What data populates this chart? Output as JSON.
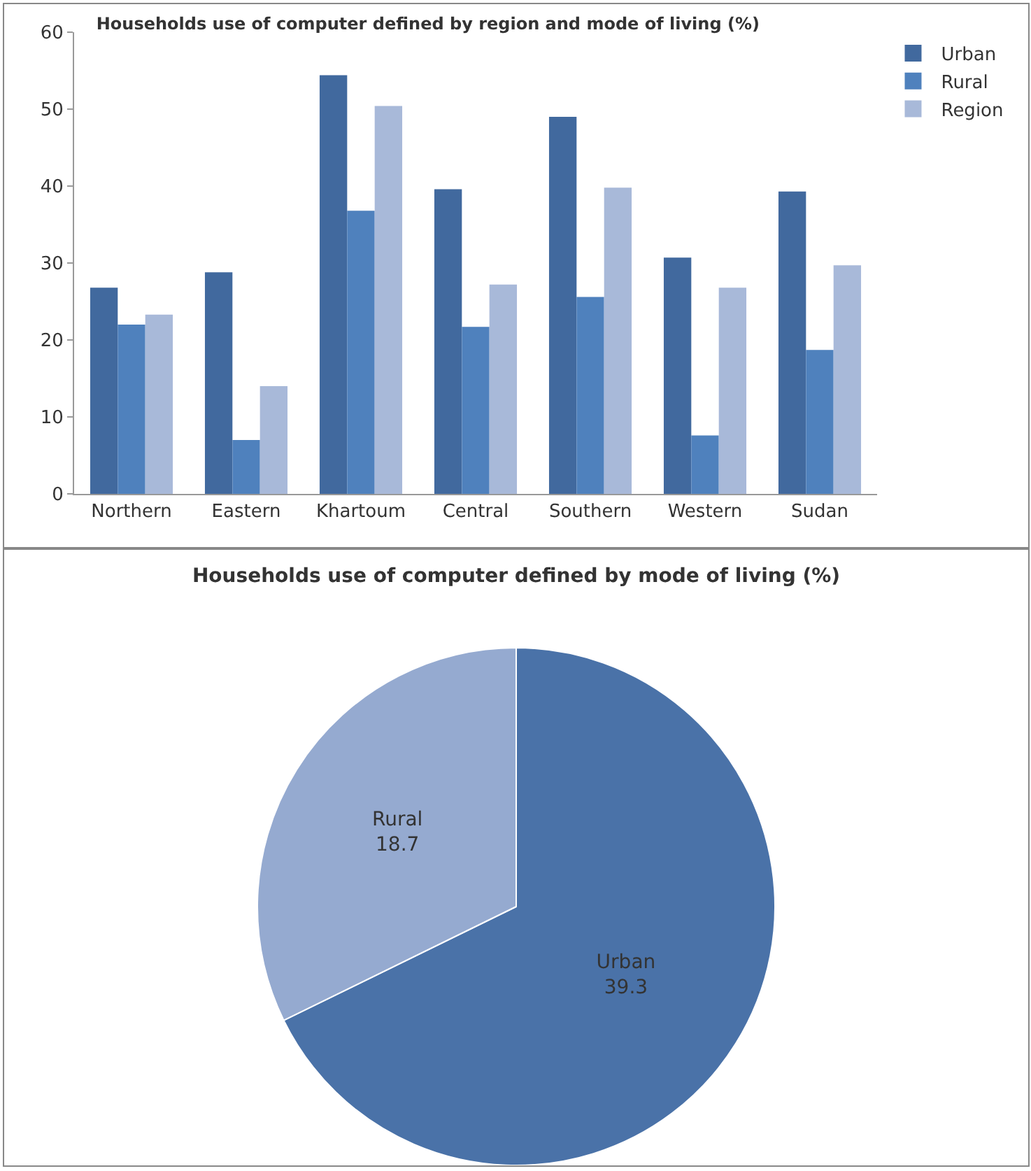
{
  "chart_data": [
    {
      "type": "bar",
      "title": "Households use of computer defined by region and mode of living (%)",
      "categories": [
        "Northern",
        "Eastern",
        "Khartoum",
        "Central",
        "Southern",
        "Western",
        "Sudan"
      ],
      "series": [
        {
          "name": "Urban",
          "color": "#41699e",
          "values": [
            26.8,
            28.8,
            54.4,
            39.6,
            49,
            30.7,
            39.3
          ]
        },
        {
          "name": "Rural",
          "color": "#4f81bd",
          "values": [
            22,
            7,
            36.8,
            21.7,
            25.6,
            7.6,
            18.7
          ]
        },
        {
          "name": "Region",
          "color": "#a8b9d9",
          "values": [
            23.3,
            14,
            50.4,
            27.2,
            39.8,
            26.8,
            29.7
          ]
        }
      ],
      "ylim": [
        0,
        60
      ],
      "yticks": [
        0,
        10,
        20,
        30,
        40,
        50,
        60
      ],
      "grid": false,
      "legend": "top right"
    },
    {
      "type": "pie",
      "title": "Households use of computer defined by mode of living (%)",
      "categories": [
        "Urban",
        "Rural"
      ],
      "values": [
        39.3,
        18.7
      ],
      "colors": [
        "#4a72a8",
        "#95aad0"
      ],
      "data_labels": true
    }
  ]
}
